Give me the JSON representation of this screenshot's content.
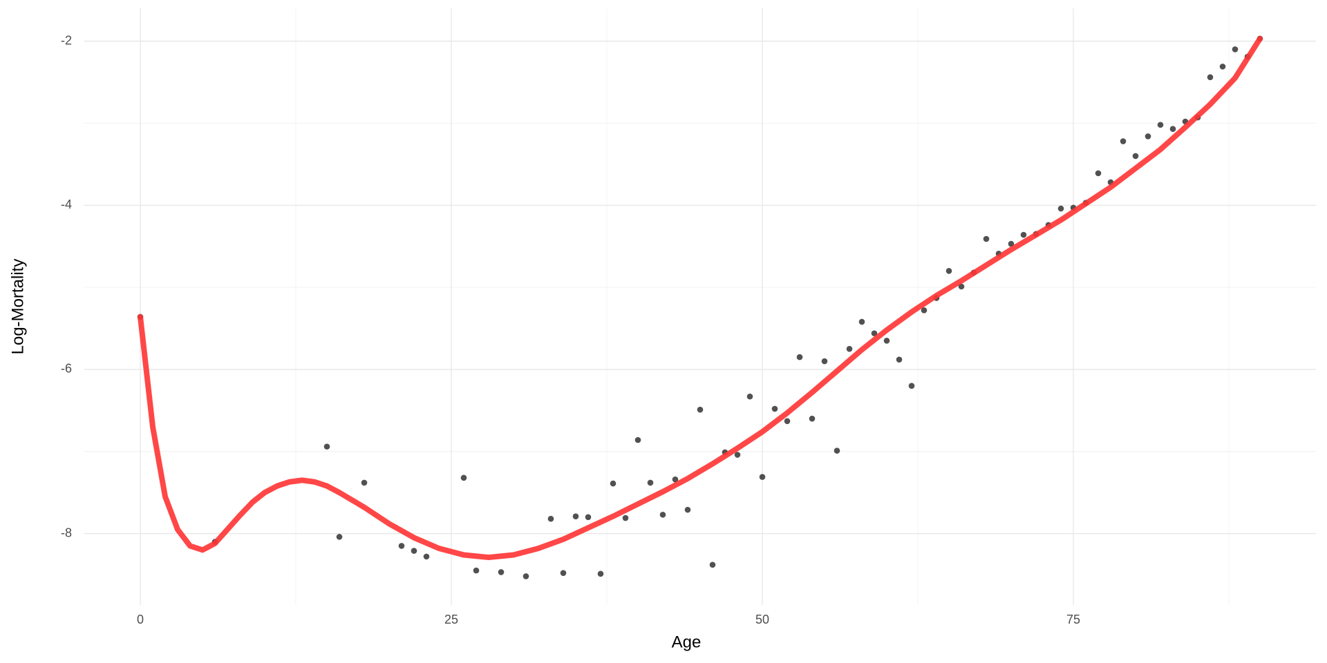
{
  "chart_data": {
    "type": "scatter",
    "x_label": "Age",
    "y_label": "Log-Mortality",
    "xlim": [
      -4.5,
      94.5
    ],
    "ylim": [
      -8.87,
      -1.6
    ],
    "xticks": [
      0,
      25,
      50,
      75
    ],
    "yticks": [
      -2,
      -4,
      -6,
      -8
    ],
    "grid": true,
    "series": [
      {
        "type": "scatter",
        "color": "#333333",
        "x": [
          0,
          6,
          15,
          16,
          18,
          21,
          22,
          23,
          26,
          27,
          29,
          31,
          33,
          34,
          35,
          36,
          37,
          38,
          39,
          40,
          41,
          42,
          43,
          44,
          45,
          46,
          47,
          48,
          49,
          50,
          51,
          52,
          53,
          54,
          55,
          56,
          57,
          58,
          59,
          60,
          61,
          62,
          63,
          64,
          65,
          66,
          67,
          68,
          69,
          70,
          71,
          72,
          73,
          74,
          75,
          76,
          77,
          78,
          79,
          80,
          81,
          82,
          83,
          84,
          85,
          86,
          87,
          88,
          89,
          90
        ],
        "values": [
          -5.36,
          -8.1,
          -6.94,
          -8.04,
          -7.38,
          -8.15,
          -8.21,
          -8.28,
          -7.32,
          -8.45,
          -8.47,
          -8.52,
          -7.82,
          -8.48,
          -7.79,
          -7.8,
          -8.49,
          -7.39,
          -7.81,
          -6.86,
          -7.38,
          -7.77,
          -7.34,
          -7.71,
          -6.49,
          -8.38,
          -7.01,
          -7.04,
          -6.33,
          -7.31,
          -6.48,
          -6.63,
          -5.85,
          -6.6,
          -5.9,
          -6.99,
          -5.75,
          -5.42,
          -5.56,
          -5.65,
          -5.88,
          -6.2,
          -5.28,
          -5.13,
          -4.8,
          -4.99,
          -4.82,
          -4.41,
          -4.59,
          -4.47,
          -4.36,
          -4.35,
          -4.24,
          -4.04,
          -4.03,
          -3.97,
          -3.61,
          -3.72,
          -3.22,
          -3.4,
          -3.16,
          -3.02,
          -3.07,
          -2.98,
          -2.93,
          -2.44,
          -2.31,
          -2.1,
          -2.19,
          -1.97
        ]
      },
      {
        "type": "line",
        "color": "#ff3333",
        "x": [
          0,
          1,
          2,
          3,
          4,
          5,
          6,
          7,
          8,
          9,
          10,
          11,
          12,
          13,
          14,
          15,
          16,
          18,
          20,
          22,
          24,
          26,
          28,
          30,
          32,
          34,
          36,
          38,
          40,
          42,
          44,
          46,
          48,
          50,
          52,
          54,
          56,
          58,
          60,
          62,
          64,
          66,
          68,
          70,
          72,
          74,
          76,
          78,
          80,
          82,
          84,
          86,
          88,
          90
        ],
        "values": [
          -5.36,
          -6.7,
          -7.55,
          -7.95,
          -8.15,
          -8.2,
          -8.12,
          -7.95,
          -7.78,
          -7.62,
          -7.5,
          -7.42,
          -7.37,
          -7.35,
          -7.37,
          -7.42,
          -7.5,
          -7.68,
          -7.88,
          -8.05,
          -8.18,
          -8.26,
          -8.29,
          -8.26,
          -8.18,
          -8.07,
          -7.93,
          -7.79,
          -7.64,
          -7.49,
          -7.33,
          -7.15,
          -6.96,
          -6.76,
          -6.53,
          -6.28,
          -6.02,
          -5.76,
          -5.52,
          -5.3,
          -5.1,
          -4.92,
          -4.73,
          -4.54,
          -4.36,
          -4.18,
          -3.98,
          -3.78,
          -3.55,
          -3.32,
          -3.05,
          -2.77,
          -2.45,
          -1.97
        ]
      }
    ]
  }
}
